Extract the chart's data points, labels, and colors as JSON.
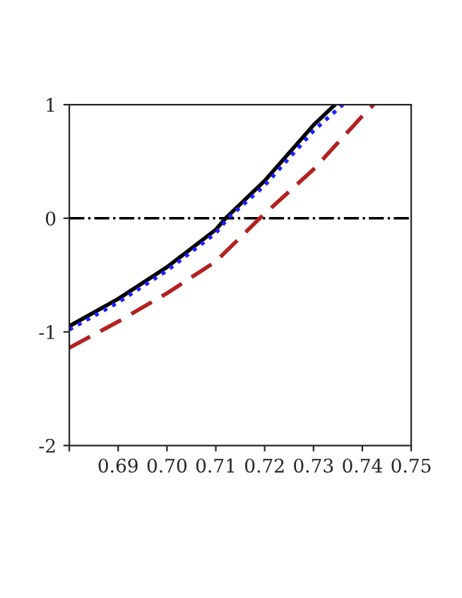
{
  "chart_data": {
    "type": "line",
    "xlim": [
      0.68,
      0.75
    ],
    "xticks": [
      {
        "value": 0.68,
        "label": null
      },
      {
        "value": 0.69,
        "label": "0.69"
      },
      {
        "value": 0.7,
        "label": "0.70"
      },
      {
        "value": 0.71,
        "label": "0.71"
      },
      {
        "value": 0.72,
        "label": "0.72"
      },
      {
        "value": 0.73,
        "label": "0.73"
      },
      {
        "value": 0.74,
        "label": "0.74"
      },
      {
        "value": 0.75,
        "label": "0.75"
      }
    ],
    "ylim": [
      -2,
      1
    ],
    "yticks": [
      -2,
      -1,
      0,
      1
    ],
    "grid": false,
    "legend": false,
    "series": [
      {
        "color": "#000000",
        "line_style": "solid",
        "x": [
          0.68,
          0.69,
          0.7,
          0.71,
          0.712,
          0.72,
          0.73,
          0.7344
        ],
        "values": [
          -0.95,
          -0.71,
          -0.43,
          -0.1,
          0.0,
          0.33,
          0.82,
          1.0
        ]
      },
      {
        "color": "#1f1fff",
        "line_style": "dotted",
        "x": [
          0.68,
          0.69,
          0.7,
          0.71,
          0.7125,
          0.72,
          0.73,
          0.736
        ],
        "values": [
          -0.98,
          -0.74,
          -0.46,
          -0.13,
          0.0,
          0.29,
          0.77,
          1.0
        ]
      },
      {
        "color": "#b22222",
        "line_style": "dashed",
        "x": [
          0.68,
          0.69,
          0.7,
          0.71,
          0.719,
          0.73,
          0.74,
          0.7423
        ],
        "values": [
          -1.14,
          -0.91,
          -0.66,
          -0.38,
          0.0,
          0.43,
          0.9,
          1.0
        ]
      }
    ],
    "ref_lines": [
      {
        "axis": "y",
        "value": 0,
        "color": "#000000",
        "line_style": "dashdot"
      }
    ]
  }
}
